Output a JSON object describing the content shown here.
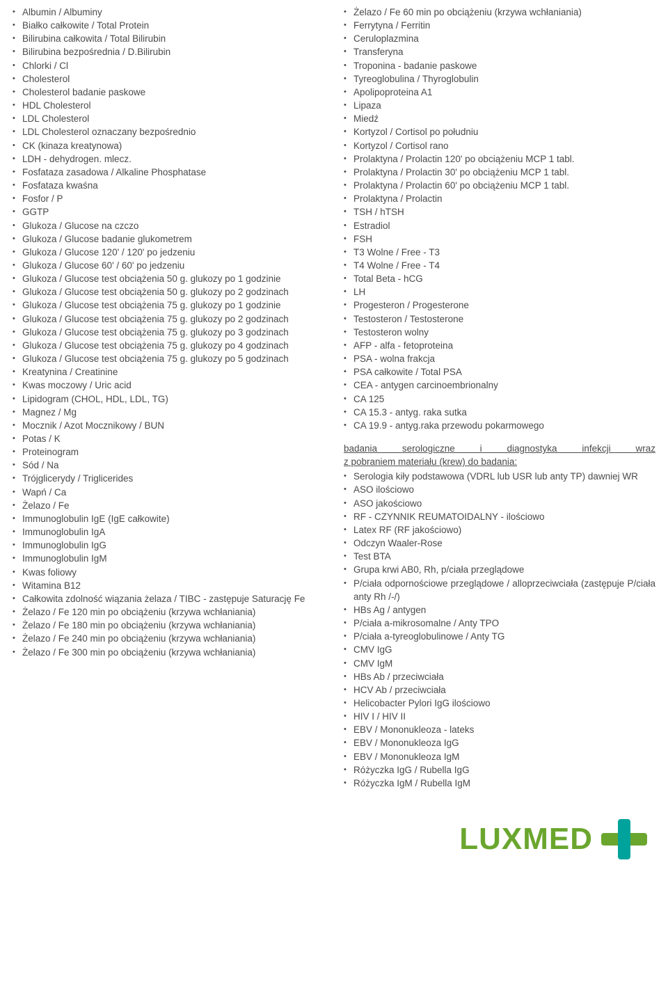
{
  "colors": {
    "text": "#4a4a4a",
    "background": "#ffffff",
    "logo_green": "#6aa62e",
    "logo_teal": "#00a39b"
  },
  "left_list": [
    "Albumin / Albuminy",
    "Białko całkowite / Total Protein",
    "Bilirubina całkowita / Total Bilirubin",
    "Bilirubina bezpośrednia / D.Bilirubin",
    "Chlorki / Cl",
    "Cholesterol",
    "Cholesterol badanie paskowe",
    "HDL Cholesterol",
    "LDL Cholesterol",
    "LDL Cholesterol oznaczany bezpośrednio",
    "CK (kinaza kreatynowa)",
    "LDH - dehydrogen. mlecz.",
    "Fosfataza zasadowa / Alkaline Phosphatase",
    "Fosfataza kwaśna",
    "Fosfor / P",
    "GGTP",
    "Glukoza / Glucose na czczo",
    "Glukoza / Glucose badanie glukometrem",
    "Glukoza / Glucose 120' / 120' po jedzeniu",
    "Glukoza / Glucose 60' / 60' po jedzeniu",
    "Glukoza / Glucose test obciążenia 50 g. glukozy po 1 godzinie",
    "Glukoza / Glucose test obciążenia 50 g. glukozy po 2 godzinach",
    "Glukoza / Glucose test obciążenia 75 g. glukozy po 1 godzinie",
    "Glukoza / Glucose test obciążenia 75 g. glukozy po 2 godzinach",
    "Glukoza / Glucose test obciążenia 75 g. glukozy po 3 godzinach",
    "Glukoza / Glucose test obciążenia 75 g. glukozy po 4 godzinach",
    "Glukoza / Glucose test obciążenia 75 g. glukozy po 5 godzinach",
    "Kreatynina / Creatinine",
    "Kwas moczowy / Uric acid",
    "Lipidogram (CHOL, HDL, LDL, TG)",
    "Magnez / Mg",
    "Mocznik / Azot Mocznikowy / BUN",
    "Potas / K",
    "Proteinogram",
    "Sód / Na",
    "Trójglicerydy / Triglicerides",
    "Wapń / Ca",
    "Żelazo / Fe",
    "Immunoglobulin IgE (IgE całkowite)",
    "Immunoglobulin IgA",
    "Immunoglobulin IgG",
    "Immunoglobulin IgM",
    "Kwas foliowy",
    "Witamina B12",
    "Całkowita zdolność wiązania żelaza / TIBC - zastępuje Saturację Fe",
    "Żelazo / Fe 120 min po obciążeniu (krzywa wchłaniania)",
    "Żelazo / Fe 180 min po obciążeniu (krzywa wchłaniania)",
    "Żelazo / Fe 240 min po obciążeniu (krzywa wchłaniania)",
    "Żelazo / Fe 300 min po obciążeniu (krzywa wchłaniania)"
  ],
  "right_list_top": [
    "Żelazo / Fe 60 min po obciążeniu (krzywa wchłaniania)",
    "Ferrytyna / Ferritin",
    "Ceruloplazmina",
    "Transferyna",
    "Troponina - badanie paskowe",
    "Tyreoglobulina / Thyroglobulin",
    "Apolipoproteina A1",
    "Lipaza",
    "Miedź",
    "Kortyzol / Cortisol  po południu",
    "Kortyzol / Cortisol  rano",
    "Prolaktyna / Prolactin  120' po obciążeniu MCP 1 tabl.",
    "Prolaktyna / Prolactin  30' po obciążeniu MCP 1 tabl.",
    "Prolaktyna / Prolactin  60'  po obciążeniu MCP 1 tabl.",
    "Prolaktyna / Prolactin",
    "TSH / hTSH",
    "Estradiol",
    "FSH",
    "T3 Wolne / Free - T3",
    "T4 Wolne / Free - T4",
    "Total Beta - hCG",
    "LH",
    "Progesteron / Progesterone",
    "Testosteron / Testosterone",
    "Testosteron wolny",
    "AFP - alfa - fetoproteina",
    "PSA - wolna frakcja",
    "PSA całkowite / Total PSA",
    "CEA - antygen carcinoembrionalny",
    "CA 125",
    "CA 15.3 - antyg. raka sutka",
    "CA 19.9 - antyg.raka przewodu pokarmowego"
  ],
  "section_title_line1": "badania serologiczne i diagnostyka infekcji wraz",
  "section_title_line2": "z pobraniem materiału (krew) do badania:",
  "right_list_bottom": [
    "Serologia kiły podstawowa (VDRL lub USR lub anty TP) dawniej WR",
    "ASO ilościowo",
    "ASO jakościowo",
    "RF - CZYNNIK REUMATOIDALNY - ilościowo",
    "Latex RF (RF jakościowo)",
    "Odczyn Waaler-Rose",
    "Test BTA",
    "Grupa krwi  AB0, Rh, p/ciała przeglądowe",
    "P/ciała odpornościowe przeglądowe / alloprzeciwciała (zastępuje P/ciała anty Rh /-/)",
    "HBs Ag / antygen",
    "P/ciała a-mikrosomalne / Anty TPO",
    "P/ciała a-tyreoglobulinowe / Anty TG",
    "CMV IgG",
    "CMV IgM",
    "HBs Ab / przeciwciała",
    "HCV Ab / przeciwciała",
    "Helicobacter Pylori IgG ilościowo",
    "HIV I / HIV II",
    "EBV / Mononukleoza - lateks",
    "EBV / Mononukleoza IgG",
    "EBV / Mononukleoza IgM",
    "Różyczka IgG / Rubella IgG",
    "Różyczka IgM / Rubella IgM"
  ],
  "logo": {
    "text": "LUXMED"
  }
}
